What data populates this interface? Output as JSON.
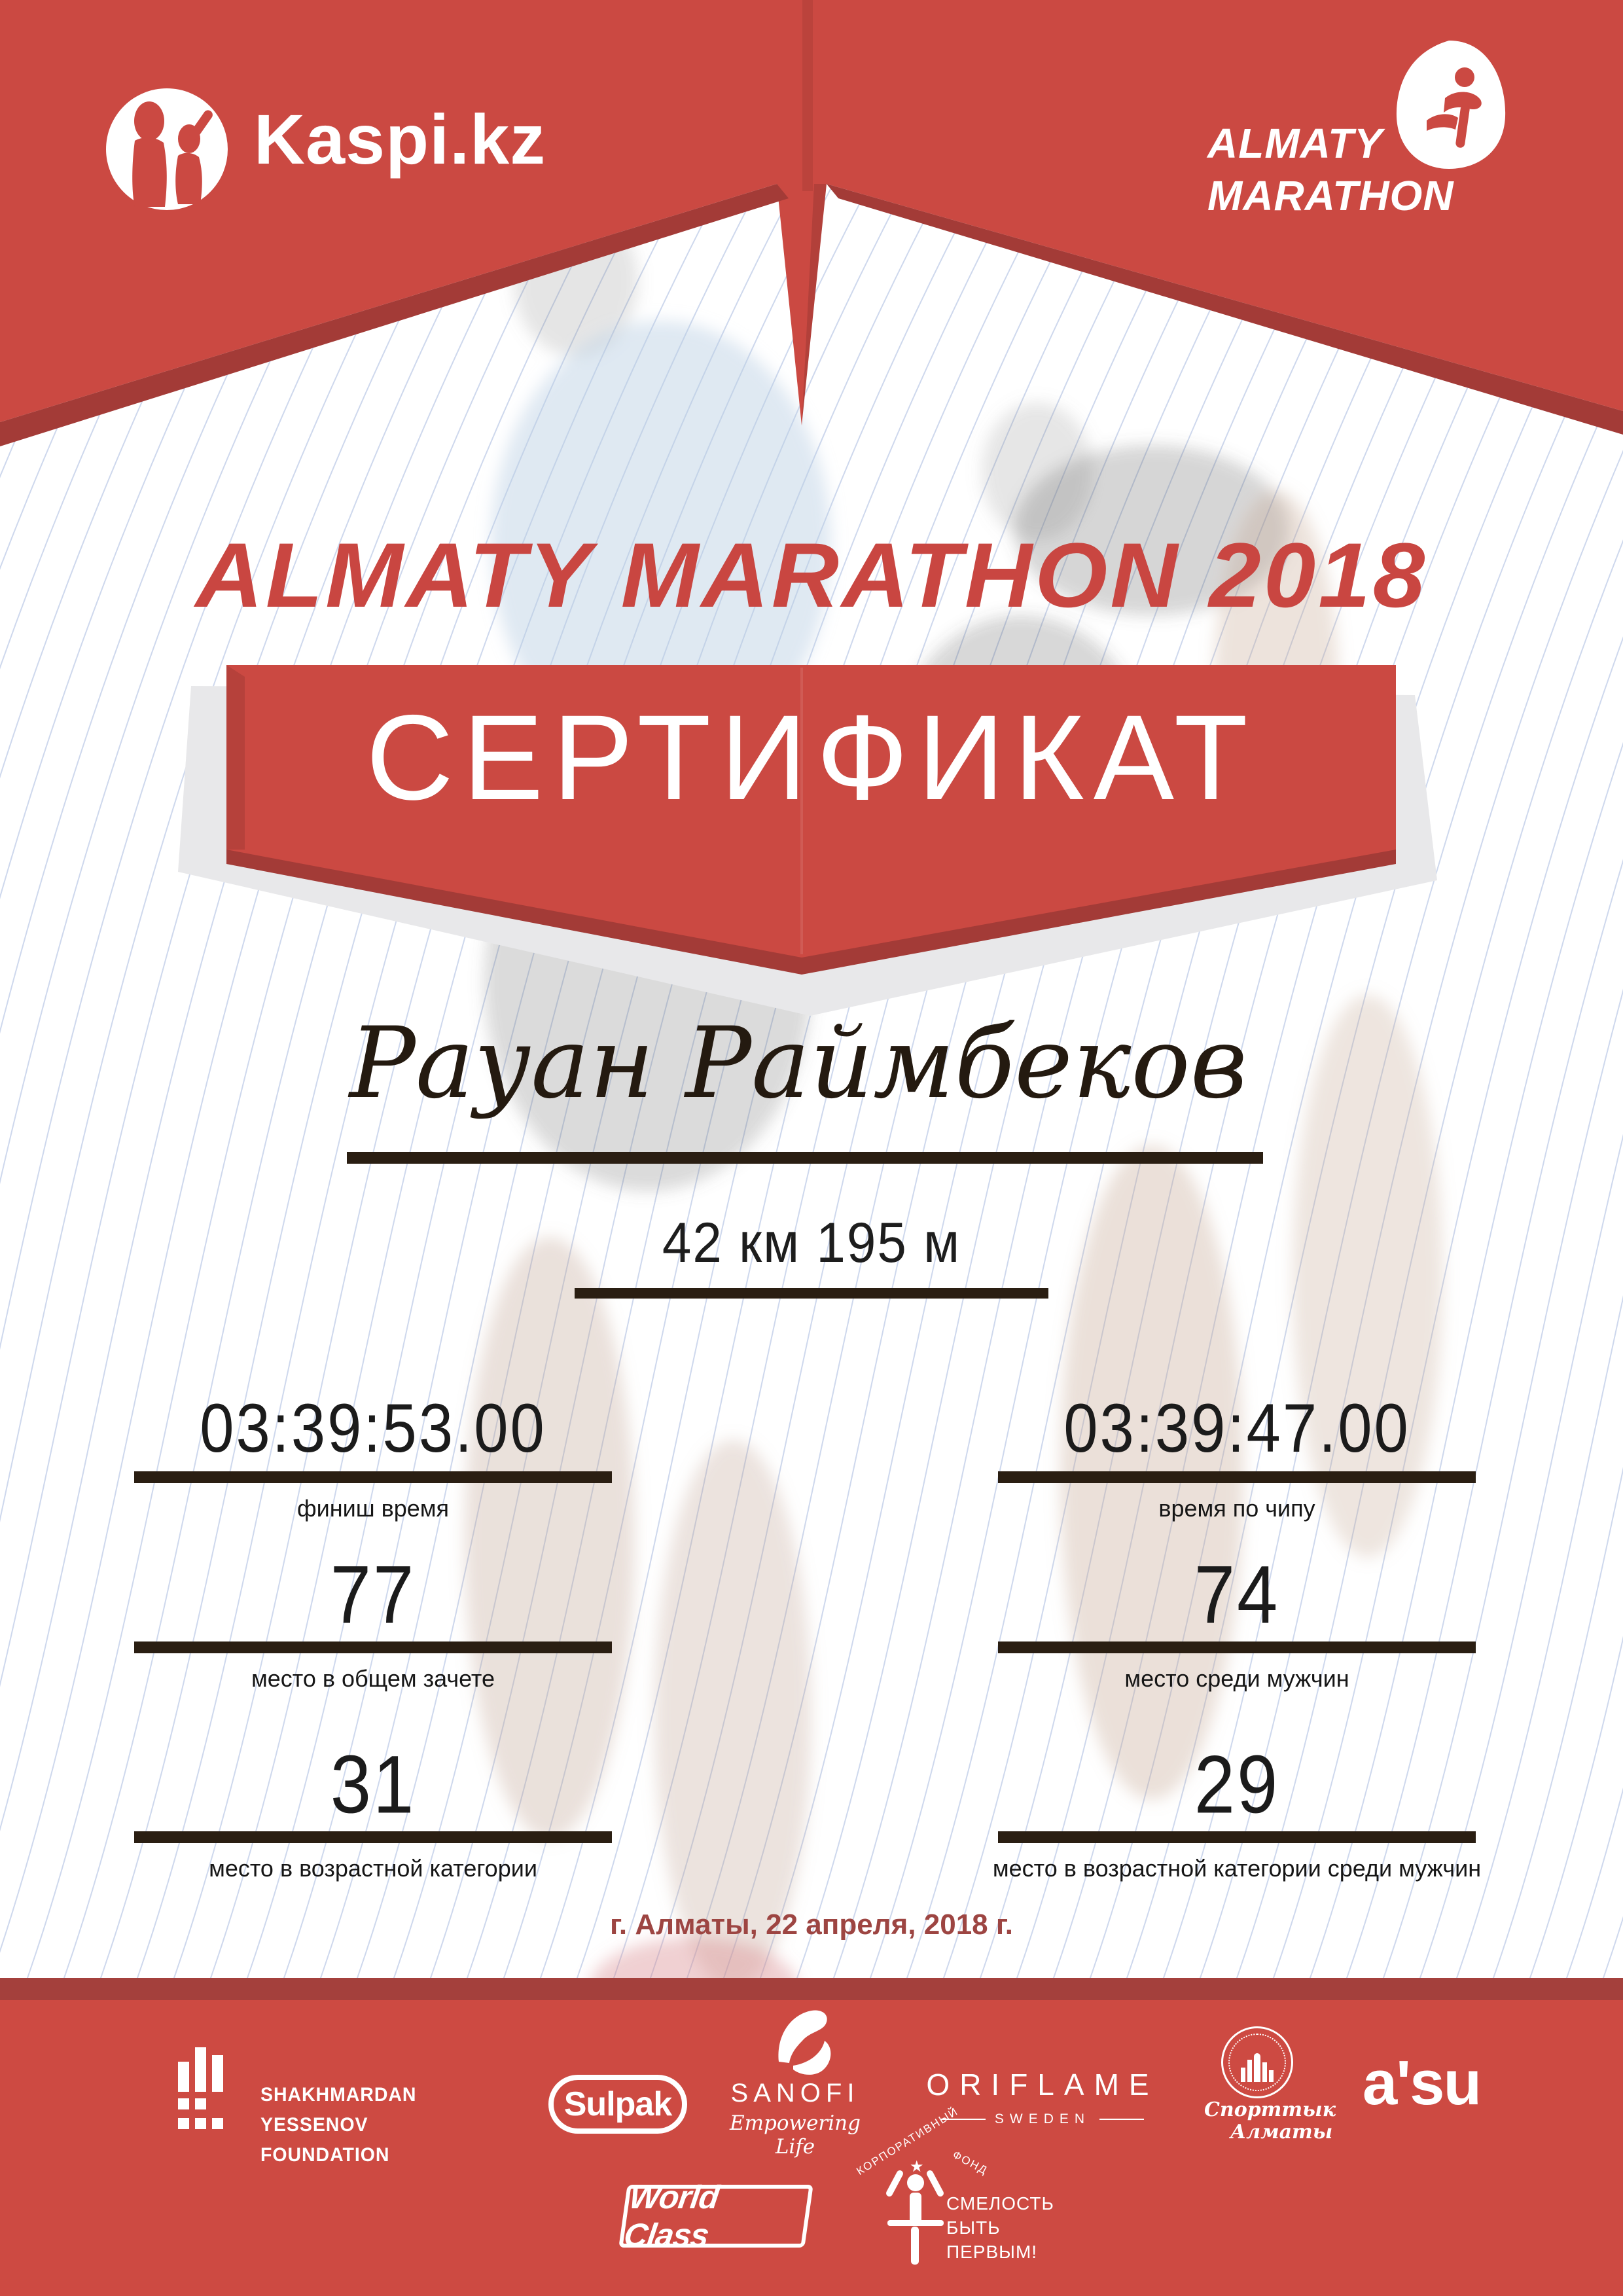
{
  "certificate": {
    "kaspi_logo_text": "Kaspi.kz",
    "event_logo": {
      "line1": "ALMATY",
      "line2": "MARATHON"
    },
    "title": "ALMATY MARATHON 2018",
    "ribbon_label": "СЕРТИФИКАТ",
    "participant_name": "Рауан Раймбеков",
    "distance": "42 км 195 м",
    "stats": [
      {
        "value": "03:39:53.00",
        "label": "финиш время"
      },
      {
        "value": "03:39:47.00",
        "label": "время по чипу"
      },
      {
        "value": "77",
        "label": "место в общем зачете"
      },
      {
        "value": "74",
        "label": "место среди мужчин"
      },
      {
        "value": "31",
        "label": "место в возрастной категории"
      },
      {
        "value": "29",
        "label": "место в возрастной категории среди мужчин"
      }
    ],
    "date_location": "г. Алматы, 22 апреля, 2018 г.",
    "footer": {
      "yessenov_line1": "SHAKHMARDAN YESSENOV",
      "yessenov_line2": "FOUNDATION",
      "sulpak": "Sulpak",
      "sanofi": "SANOFI",
      "sanofi_tagline": "Empowering Life",
      "oriflame": "ORIFLAME",
      "oriflame_sub": "SWEDEN",
      "sport_almaty_line1": "Спорттык",
      "sport_almaty_line2": "Алматы",
      "asu": "a'su",
      "world_class": "World Class",
      "fund_arc1": "КОРПОРАТИВНЫЙ",
      "fund_arc2": "ФОНД",
      "fund_star": "★",
      "fund_slogan1": "СМЕЛОСТЬ",
      "fund_slogan2": "БЫТЬ",
      "fund_slogan3": "ПЕРВЫМ!"
    },
    "colors": {
      "brand_red": "#cb4942",
      "fold_dark_red": "#a33b37",
      "footer_red": "#cd4a42",
      "date_red": "#9d4542",
      "ink": "#241a10",
      "guilloche_blue": "#93a9d6"
    }
  }
}
